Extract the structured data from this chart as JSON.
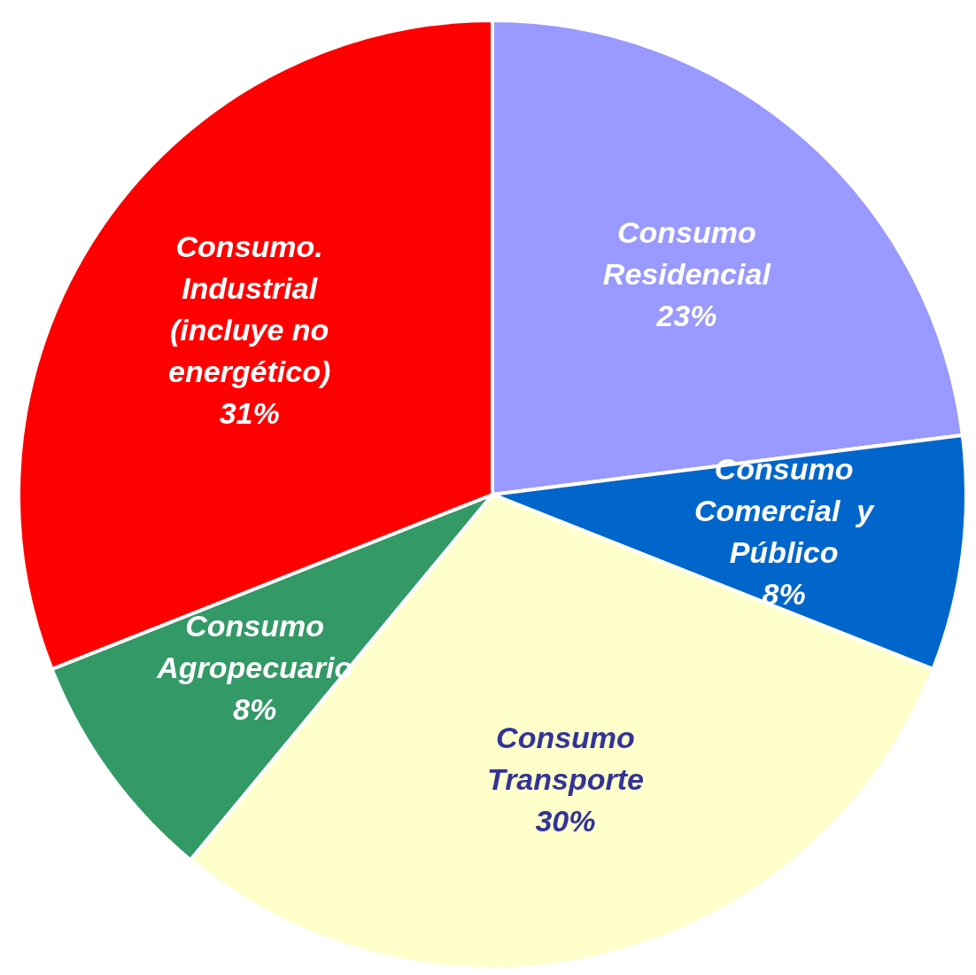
{
  "chart_data": {
    "type": "pie",
    "categories": [
      "Consumo Residencial",
      "Consumo Comercial  y Público",
      "Consumo Transporte",
      "Consumo Agropecuario",
      "Consumo. Industrial (incluye no energético)"
    ],
    "values": [
      23,
      8,
      30,
      8,
      31
    ],
    "value_labels": [
      "23%",
      "8%",
      "30%",
      "8%",
      "31%"
    ],
    "colors": [
      "#9999ff",
      "#0066cc",
      "#ffffcc",
      "#339966",
      "#ff0000"
    ],
    "legend": false
  }
}
